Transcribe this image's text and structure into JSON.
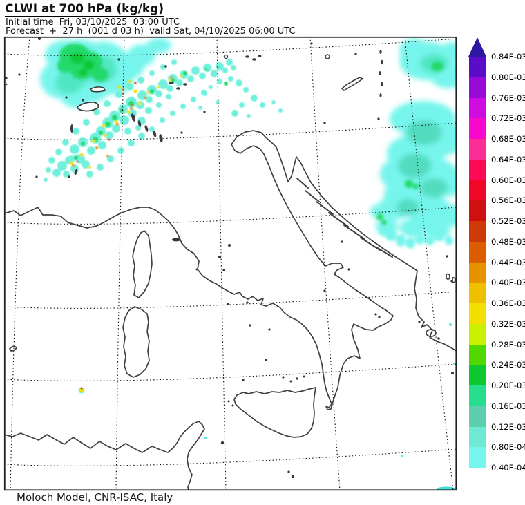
{
  "header": {
    "title": "CLWI at 700 hPa (kg/kg)",
    "initial_time": "Initial time  Fri, 03/10/2025  03:00 UTC",
    "forecast": "Forecast  +  27 h  (001 d 03 h)  valid Sat, 04/10/2025 06:00 UTC"
  },
  "footer": {
    "credit": "Moloch Model, CNR-ISAC, Italy"
  },
  "colorbar": {
    "orientation": "vertical",
    "arrow_color": "#2e15a2",
    "labels_bottom_to_top": [
      "0.40E-04",
      "0.80E-04",
      "0.12E-03",
      "0.16E-03",
      "0.20E-03",
      "0.24E-03",
      "0.28E-03",
      "0.32E-03",
      "0.36E-03",
      "0.40E-03",
      "0.44E-03",
      "0.48E-03",
      "0.52E-03",
      "0.56E-03",
      "0.60E-03",
      "0.64E-03",
      "0.68E-03",
      "0.72E-03",
      "0.76E-03",
      "0.80E-03",
      "0.84E-03"
    ],
    "segment_colors_bottom_to_top": [
      "#76f5ec",
      "#6fe9d4",
      "#5ccfae",
      "#27dd8e",
      "#0fc830",
      "#52d800",
      "#c8f000",
      "#f4e000",
      "#eec000",
      "#e89200",
      "#dc5c00",
      "#cd3a05",
      "#cf1010",
      "#f00728",
      "#fc0a55",
      "#fb2e96",
      "#f807cd",
      "#cf0ce0",
      "#9a0ad7",
      "#5a0dc8"
    ]
  },
  "map_colors": {
    "coastline": "#3f3f3f",
    "graticule": "#111111",
    "cloud_light_teal": "#76f5ec",
    "cloud_teal": "#4fe6c2",
    "cloud_green": "#22d96a",
    "cloud_bright_green": "#0fc830",
    "cloud_yellow": "#f2e000",
    "cloud_orange": "#e89200",
    "cloud_red": "#d81510"
  }
}
